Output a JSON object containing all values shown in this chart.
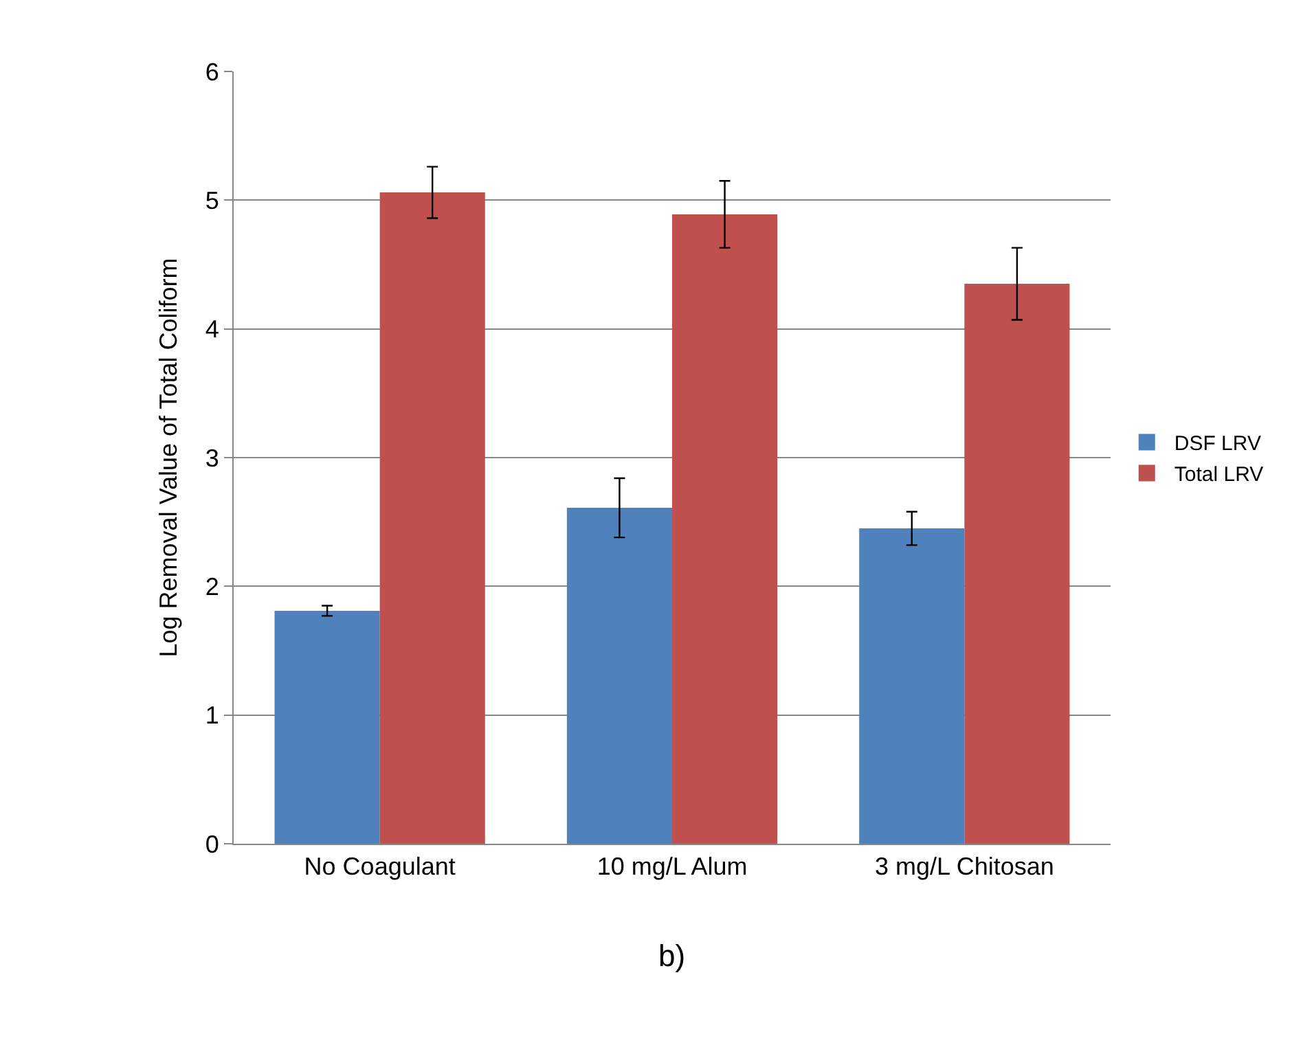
{
  "chart_data": {
    "type": "bar",
    "ylabel": "Log Removal Value of Total Coliform",
    "categories": [
      "No Coagulant",
      "10 mg/L Alum",
      "3 mg/L Chitosan"
    ],
    "series": [
      {
        "name": "DSF LRV",
        "color": "#4f81bd",
        "values": [
          1.81,
          2.61,
          2.45
        ],
        "errors": [
          0.04,
          0.23,
          0.13
        ]
      },
      {
        "name": "Total LRV",
        "color": "#c0504d",
        "values": [
          5.06,
          4.89,
          4.35
        ],
        "errors": [
          0.2,
          0.26,
          0.28
        ]
      }
    ],
    "ylim": [
      0,
      6
    ],
    "yticks": [
      0,
      1,
      2,
      3,
      4,
      5,
      6
    ],
    "grid": "y",
    "legend": "right",
    "annotations": [
      "b)"
    ]
  }
}
